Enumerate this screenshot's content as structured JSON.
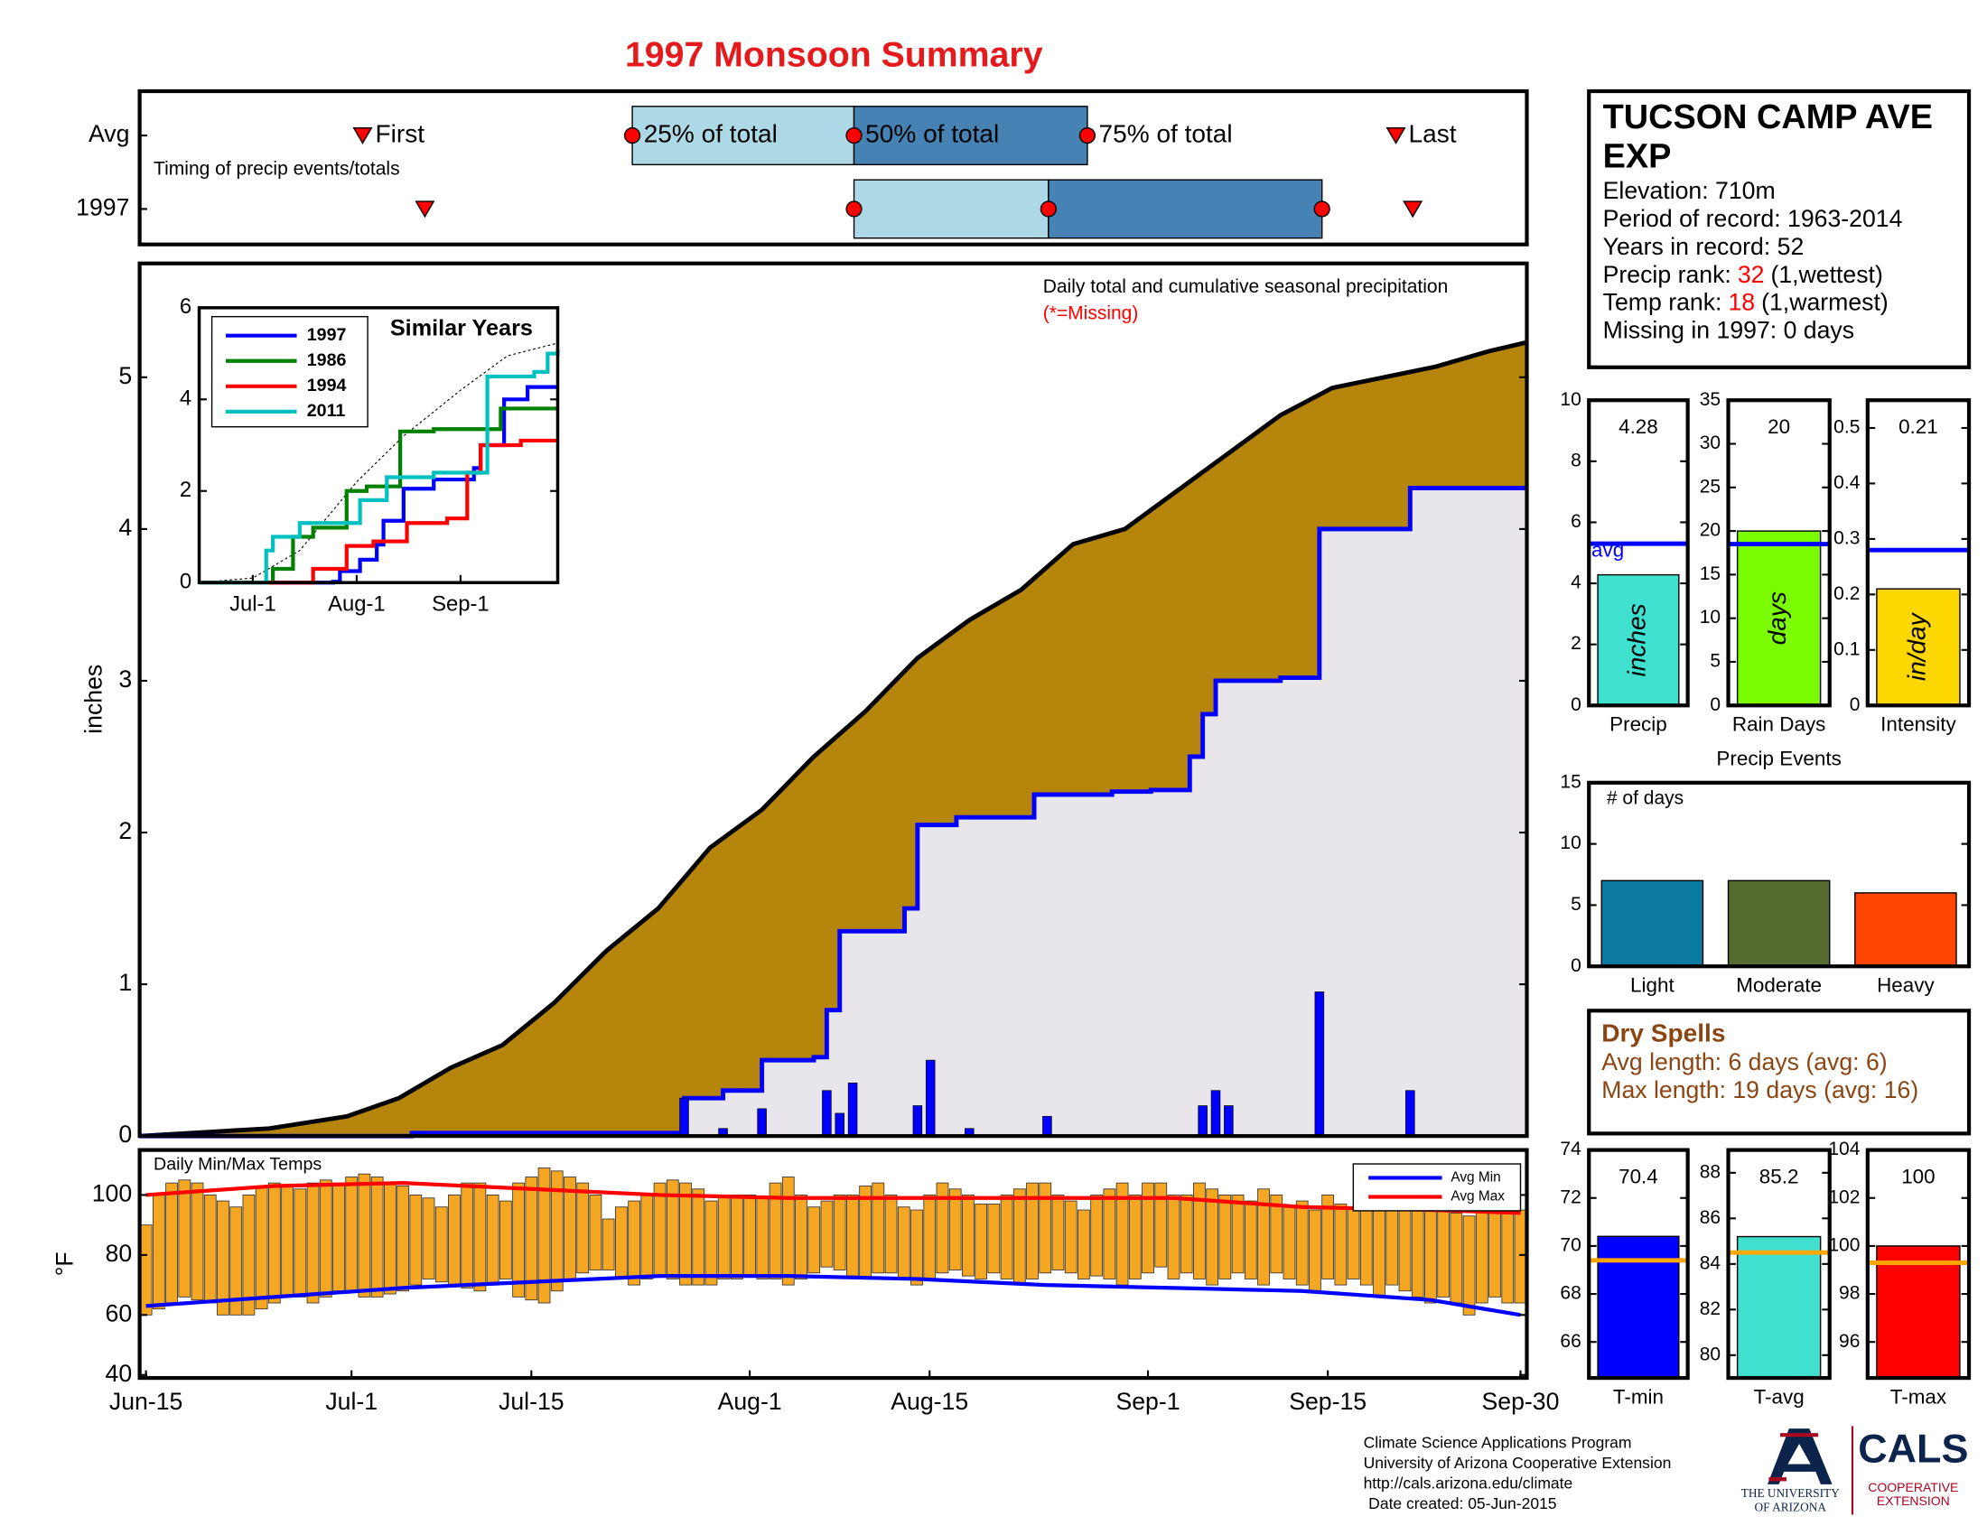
{
  "title": "1997 Monsoon Summary",
  "chart_data": [
    {
      "type": "timing",
      "rows": [
        "Avg",
        "1997"
      ],
      "annotation": "Timing of precip events/totals",
      "xlim": [
        0,
        107
      ],
      "first": [
        17.2,
        22
      ],
      "q25": [
        38,
        55.1
      ],
      "q50": [
        55.1,
        70.1
      ],
      "q75": [
        73.1,
        91.2
      ],
      "last": [
        96.9,
        98.2
      ],
      "labels": {
        "first": "First",
        "q25": "25% of total",
        "q50": "50% of total",
        "q75": "75% of total",
        "last": "Last"
      },
      "colors": {
        "early": "#add8e6",
        "late": "#4682b4",
        "marker": "#ff0000"
      }
    },
    {
      "type": "step-area",
      "ylabel": "inches",
      "annotation": "Daily total and cumulative seasonal precipitation",
      "missing_note": "(*=Missing)",
      "xlim": [
        0,
        107
      ],
      "ylim": [
        0,
        5.75
      ],
      "yticks": [
        0,
        1,
        2,
        3,
        4,
        5
      ],
      "average": {
        "color": "#b5860b",
        "x": [
          0,
          10,
          16,
          20,
          24,
          28,
          32,
          36,
          40,
          44,
          48,
          52,
          56,
          60,
          64,
          68,
          72,
          76,
          80,
          84,
          88,
          92,
          96,
          100,
          104,
          107
        ],
        "values": [
          0,
          0.05,
          0.13,
          0.25,
          0.45,
          0.6,
          0.88,
          1.22,
          1.5,
          1.9,
          2.15,
          2.5,
          2.8,
          3.15,
          3.4,
          3.6,
          3.9,
          4.0,
          4.25,
          4.5,
          4.75,
          4.93,
          5.0,
          5.07,
          5.17,
          5.23
        ]
      },
      "cumulative": {
        "color": "#0000ff",
        "fill": "#e8e6ea",
        "x": [
          0,
          21,
          42,
          45,
          48,
          52,
          53,
          54,
          59,
          60,
          63,
          69,
          75,
          78,
          81,
          82,
          83,
          88,
          91,
          98,
          107
        ],
        "values": [
          0,
          0.02,
          0.25,
          0.3,
          0.5,
          0.52,
          0.83,
          1.35,
          1.5,
          2.05,
          2.1,
          2.25,
          2.27,
          2.28,
          2.5,
          2.78,
          3.0,
          3.02,
          4.0,
          4.27,
          4.27
        ]
      },
      "daily": {
        "color": "#0000ff",
        "x": [
          42,
          45,
          48,
          53,
          54,
          55,
          60,
          61,
          64,
          70,
          82,
          83,
          84,
          91,
          98
        ],
        "values": [
          0.25,
          0.05,
          0.18,
          0.3,
          0.15,
          0.35,
          0.2,
          0.5,
          0.05,
          0.13,
          0.2,
          0.3,
          0.2,
          0.95,
          0.3
        ]
      }
    },
    {
      "type": "line",
      "title": "Similar Years",
      "xlim": [
        0,
        107
      ],
      "ylim": [
        0,
        6
      ],
      "yticks": [
        0,
        2,
        4,
        6
      ],
      "xticks": [
        {
          "value": 16,
          "label": "Jul-1"
        },
        {
          "value": 47,
          "label": "Aug-1"
        },
        {
          "value": 78,
          "label": "Sep-1"
        }
      ],
      "average": {
        "color": "#000000",
        "x": [
          0,
          16,
          30,
          47,
          61,
          78,
          92,
          107
        ],
        "values": [
          0,
          0.1,
          0.7,
          2.2,
          3.2,
          4.2,
          4.95,
          5.23
        ]
      },
      "series": [
        {
          "name": "1997",
          "color": "#0000ff",
          "x": [
            0,
            40,
            42,
            48,
            53,
            55,
            61,
            70,
            82,
            84,
            91,
            98,
            107
          ],
          "values": [
            0,
            0.02,
            0.25,
            0.5,
            0.83,
            1.35,
            2.05,
            2.25,
            2.5,
            3.0,
            4.0,
            4.27,
            4.27
          ]
        },
        {
          "name": "1986",
          "color": "#008000",
          "x": [
            0,
            20,
            22,
            28,
            34,
            44,
            50,
            60,
            70,
            90,
            107
          ],
          "values": [
            0,
            0,
            0.3,
            1.0,
            1.2,
            2.0,
            2.1,
            3.3,
            3.35,
            3.8,
            3.8
          ]
        },
        {
          "name": "1994",
          "color": "#ff0000",
          "x": [
            0,
            33,
            34,
            44,
            52,
            62,
            74,
            80,
            84,
            96,
            107
          ],
          "values": [
            0,
            0,
            0.3,
            0.8,
            0.9,
            1.3,
            1.4,
            2.4,
            3.0,
            3.1,
            3.1
          ]
        },
        {
          "name": "2011",
          "color": "#00c0c0",
          "x": [
            0,
            18,
            20,
            22,
            30,
            44,
            48,
            56,
            70,
            86,
            100,
            104,
            107
          ],
          "values": [
            0,
            0,
            0.7,
            1.0,
            1.3,
            1.3,
            1.8,
            2.3,
            2.4,
            4.5,
            4.6,
            5.0,
            5.1
          ]
        }
      ]
    },
    {
      "type": "range-bar",
      "title": "Daily Min/Max Temps",
      "ylabel": "°F",
      "xlim": [
        0,
        107
      ],
      "ylim": [
        39,
        115
      ],
      "yticks": [
        40,
        60,
        80,
        100
      ],
      "xticks": [
        {
          "value": 0,
          "label": "Jun-15"
        },
        {
          "value": 16,
          "label": "Jul-1"
        },
        {
          "value": 30,
          "label": "Jul-15"
        },
        {
          "value": 47,
          "label": "Aug-1"
        },
        {
          "value": 61,
          "label": "Aug-15"
        },
        {
          "value": 78,
          "label": "Sep-1"
        },
        {
          "value": 92,
          "label": "Sep-15"
        },
        {
          "value": 107,
          "label": "Sep-30"
        }
      ],
      "bar_color": "#f5a623",
      "x": [
        0,
        1,
        2,
        3,
        4,
        5,
        6,
        7,
        8,
        9,
        10,
        11,
        12,
        13,
        14,
        15,
        16,
        17,
        18,
        19,
        20,
        21,
        22,
        23,
        24,
        25,
        26,
        27,
        28,
        29,
        30,
        31,
        32,
        33,
        34,
        35,
        36,
        37,
        38,
        39,
        40,
        41,
        42,
        43,
        44,
        45,
        46,
        47,
        48,
        49,
        50,
        51,
        52,
        53,
        54,
        55,
        56,
        57,
        58,
        59,
        60,
        61,
        62,
        63,
        64,
        65,
        66,
        67,
        68,
        69,
        70,
        71,
        72,
        73,
        74,
        75,
        76,
        77,
        78,
        79,
        80,
        81,
        82,
        83,
        84,
        85,
        86,
        87,
        88,
        89,
        90,
        91,
        92,
        93,
        94,
        95,
        96,
        97,
        98,
        99,
        100,
        101,
        102,
        103,
        104,
        105,
        106,
        107
      ],
      "max": [
        90,
        100,
        104,
        105,
        104,
        100,
        98,
        96,
        100,
        103,
        104,
        103,
        102,
        104,
        105,
        104,
        106,
        107,
        106,
        104,
        103,
        100,
        99,
        96,
        100,
        104,
        104,
        100,
        98,
        104,
        106,
        109,
        108,
        106,
        104,
        100,
        92,
        96,
        98,
        100,
        104,
        105,
        104,
        102,
        98,
        100,
        100,
        100,
        99,
        104,
        106,
        100,
        96,
        98,
        100,
        100,
        103,
        104,
        100,
        96,
        95,
        100,
        104,
        102,
        100,
        97,
        97,
        100,
        102,
        104,
        104,
        100,
        98,
        95,
        100,
        102,
        104,
        100,
        104,
        104,
        100,
        100,
        104,
        102,
        100,
        100,
        98,
        102,
        100,
        96,
        98,
        95,
        100,
        97,
        96,
        95,
        98,
        96,
        98,
        100,
        96,
        95,
        94,
        93,
        96,
        95,
        96,
        95
      ],
      "min": [
        60,
        62,
        64,
        66,
        65,
        64,
        60,
        60,
        60,
        62,
        64,
        66,
        66,
        64,
        66,
        68,
        68,
        66,
        66,
        67,
        68,
        70,
        72,
        71,
        70,
        69,
        68,
        70,
        72,
        66,
        65,
        64,
        68,
        72,
        74,
        75,
        75,
        72,
        70,
        72,
        73,
        72,
        70,
        70,
        70,
        72,
        72,
        73,
        72,
        72,
        70,
        72,
        74,
        76,
        75,
        73,
        72,
        74,
        74,
        72,
        70,
        72,
        74,
        75,
        73,
        72,
        74,
        72,
        70,
        72,
        74,
        75,
        74,
        72,
        73,
        72,
        70,
        72,
        74,
        76,
        72,
        74,
        72,
        70,
        72,
        74,
        72,
        70,
        74,
        72,
        70,
        68,
        72,
        70,
        72,
        70,
        66,
        70,
        68,
        66,
        64,
        66,
        64,
        60,
        64,
        66,
        64,
        64
      ],
      "series": [
        {
          "name": "Avg Min",
          "color": "#0000ff",
          "x": [
            0,
            10,
            20,
            30,
            40,
            50,
            60,
            70,
            80,
            90,
            100,
            107
          ],
          "values": [
            63,
            66,
            69,
            71,
            73,
            73,
            72,
            70,
            69,
            68,
            65,
            60
          ]
        },
        {
          "name": "Avg Max",
          "color": "#ff0000",
          "x": [
            0,
            10,
            20,
            30,
            40,
            50,
            60,
            70,
            80,
            90,
            100,
            107
          ],
          "values": [
            100,
            103,
            104,
            102,
            100,
            99,
            99,
            99,
            99,
            96,
            95,
            94
          ]
        }
      ]
    },
    {
      "type": "bar",
      "categories": [
        "Precip"
      ],
      "values": [
        4.28
      ],
      "show_values": true,
      "unit_label": "inches",
      "avg": 5.3,
      "avg_label": "avg",
      "avg_color": "#0000ff",
      "color": "#40e0d0",
      "ylim": [
        0,
        10
      ],
      "yticks": [
        0,
        2,
        4,
        6,
        8,
        10
      ]
    },
    {
      "type": "bar",
      "categories": [
        "Rain Days"
      ],
      "values": [
        20
      ],
      "show_values": true,
      "unit_label": "days",
      "avg": 18.5,
      "avg_color": "#0000ff",
      "color": "#7cfc00",
      "ylim": [
        0,
        35
      ],
      "yticks": [
        0,
        5,
        10,
        15,
        20,
        25,
        30,
        35
      ]
    },
    {
      "type": "bar",
      "categories": [
        "Intensity"
      ],
      "values": [
        0.21
      ],
      "show_values": true,
      "unit_label": "in/day",
      "avg": 0.28,
      "avg_color": "#0000ff",
      "color": "#ffd700",
      "ylim": [
        0,
        0.55
      ],
      "yticks": [
        0,
        0.1,
        0.2,
        0.3,
        0.4,
        0.5
      ]
    },
    {
      "type": "bar",
      "title": "Precip Events",
      "ylabel": "# of days",
      "categories": [
        "Light",
        "Moderate",
        "Heavy"
      ],
      "values": [
        7,
        7,
        6
      ],
      "colors": [
        "#0a7aa0",
        "#556b2f",
        "#ff4500"
      ],
      "ylim": [
        0,
        15
      ],
      "yticks": [
        0,
        5,
        10,
        15
      ]
    },
    {
      "type": "bar",
      "categories": [
        "T-min"
      ],
      "values": [
        70.4
      ],
      "show_values": true,
      "avg": 69.4,
      "avg_color": "#ffa500",
      "color": "#0000ff",
      "ylim": [
        64.5,
        74
      ],
      "yticks": [
        66,
        68,
        70,
        72,
        74
      ]
    },
    {
      "type": "bar",
      "categories": [
        "T-avg"
      ],
      "values": [
        85.2
      ],
      "show_values": true,
      "avg": 84.5,
      "avg_color": "#ffa500",
      "color": "#40e0d0",
      "ylim": [
        79,
        89
      ],
      "yticks": [
        80,
        82,
        84,
        86,
        88
      ]
    },
    {
      "type": "bar",
      "categories": [
        "T-max"
      ],
      "values": [
        100
      ],
      "show_values": true,
      "avg": 99.3,
      "avg_color": "#ffa500",
      "color": "#ff0000",
      "ylim": [
        94.5,
        104
      ],
      "yticks": [
        96,
        98,
        100,
        102,
        104
      ]
    }
  ],
  "station": {
    "name_lines": [
      "TUCSON CAMP AVE",
      "EXP"
    ],
    "lines": [
      "Elevation: 710m",
      "Period of record: 1963-2014",
      "Years in record: 52"
    ],
    "precip_rank": {
      "label": "Precip rank:",
      "value": "32",
      "note": "(1,wettest)"
    },
    "temp_rank": {
      "label": "Temp rank:",
      "value": "18",
      "note": "(1,warmest)"
    },
    "missing": "Missing in 1997: 0 days"
  },
  "dry_spells": {
    "title": "Dry Spells",
    "lines": [
      "Avg length: 6 days (avg: 6)",
      "Max length: 19 days (avg: 16)"
    ]
  },
  "footer": [
    "Climate Science Applications Program",
    "University of Arizona Cooperative Extension",
    "http://cals.arizona.edu/climate",
    "Date created: 05-Jun-2015"
  ],
  "logo": {
    "university": [
      "THE UNIVERSITY",
      "OF ARIZONA"
    ],
    "cals": "CALS",
    "extension": [
      "COOPERATIVE",
      "EXTENSION"
    ]
  }
}
